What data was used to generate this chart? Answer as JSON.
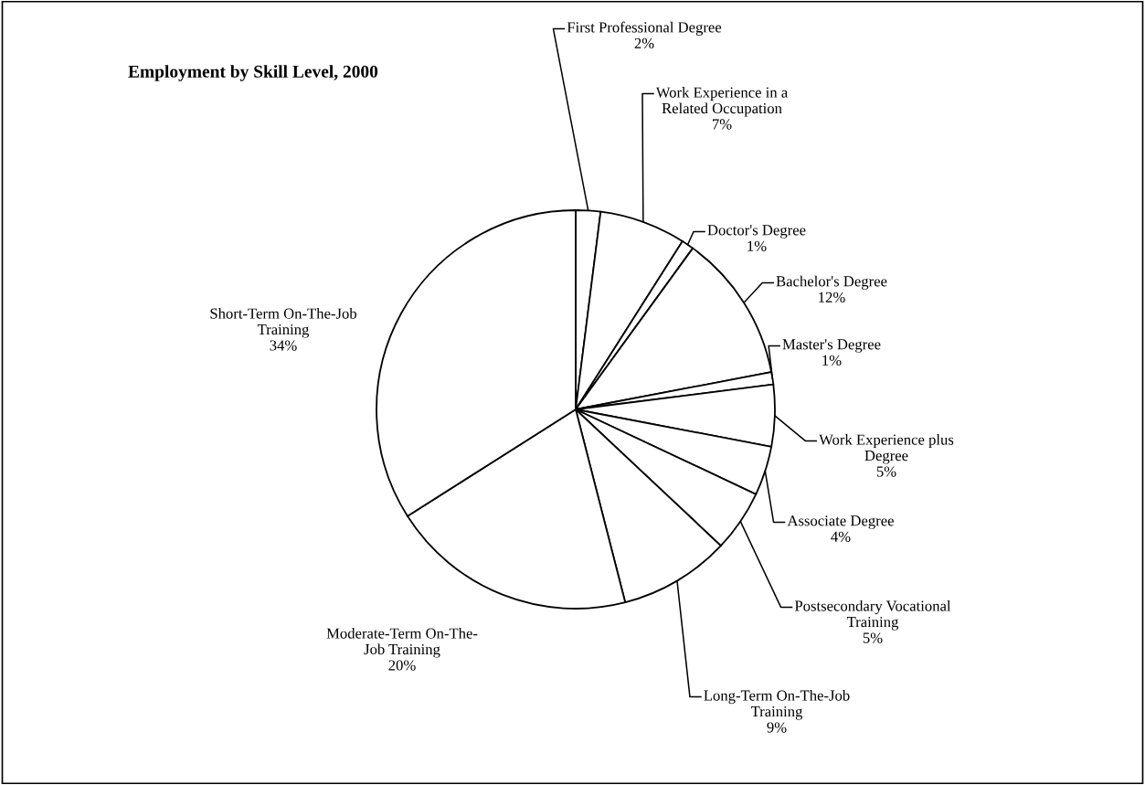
{
  "chart_data": {
    "type": "pie",
    "title": "Employment by Skill Level, 2000",
    "categories": [
      "First Professional Degree",
      "Work Experience in a\nRelated Occupation",
      "Doctor's Degree",
      "Bachelor's Degree",
      "Master's Degree",
      "Work Experience plus\nDegree",
      "Associate Degree",
      "Postsecondary Vocational\nTraining",
      "Long-Term On-The-Job\nTraining",
      "Moderate-Term On-The-\nJob Training",
      "Short-Term On-The-Job\nTraining"
    ],
    "values": [
      2,
      7,
      1,
      12,
      1,
      5,
      4,
      5,
      9,
      20,
      34
    ],
    "value_labels": [
      "2%",
      "7%",
      "1%",
      "12%",
      "1%",
      "5%",
      "4%",
      "5%",
      "9%",
      "20%",
      "34%"
    ],
    "colors": [
      "#ffffff",
      "#ffffff",
      "#ffffff",
      "#ffffff",
      "#ffffff",
      "#ffffff",
      "#ffffff",
      "#ffffff",
      "#ffffff",
      "#ffffff",
      "#ffffff"
    ]
  }
}
